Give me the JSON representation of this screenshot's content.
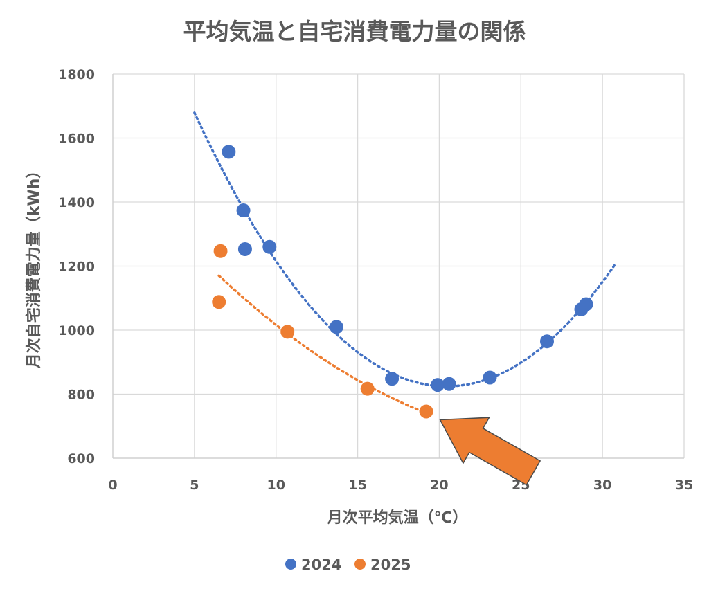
{
  "chart_data": {
    "type": "scatter",
    "title": "平均気温と自宅消費電力量の関係",
    "xlabel": "月次平均気温（℃）",
    "ylabel": "月次自宅消費電力量（kWh）",
    "xlim": [
      0,
      35
    ],
    "ylim": [
      600,
      1800
    ],
    "x_ticks": [
      0,
      5,
      10,
      15,
      20,
      25,
      30,
      35
    ],
    "y_ticks": [
      600,
      800,
      1000,
      1200,
      1400,
      1600,
      1800
    ],
    "grid": true,
    "legend_position": "bottom",
    "series": [
      {
        "name": "2024",
        "color": "#4472C4",
        "points": [
          {
            "x": 7.1,
            "y": 1557
          },
          {
            "x": 8.0,
            "y": 1374
          },
          {
            "x": 8.1,
            "y": 1253
          },
          {
            "x": 9.6,
            "y": 1260
          },
          {
            "x": 13.7,
            "y": 1010
          },
          {
            "x": 17.1,
            "y": 848
          },
          {
            "x": 19.9,
            "y": 829
          },
          {
            "x": 20.6,
            "y": 832
          },
          {
            "x": 23.1,
            "y": 852
          },
          {
            "x": 26.6,
            "y": 965
          },
          {
            "x": 28.7,
            "y": 1065
          },
          {
            "x": 29.0,
            "y": 1081
          }
        ],
        "trendline": {
          "type": "polynomial",
          "x_range": [
            5.0,
            30.8
          ]
        }
      },
      {
        "name": "2025",
        "color": "#ED7D31",
        "points": [
          {
            "x": 6.6,
            "y": 1247
          },
          {
            "x": 6.5,
            "y": 1088
          },
          {
            "x": 10.7,
            "y": 995
          },
          {
            "x": 15.6,
            "y": 817
          },
          {
            "x": 19.2,
            "y": 746
          }
        ],
        "trendline": {
          "type": "polynomial",
          "x_range": [
            6.5,
            19.2
          ]
        }
      }
    ],
    "annotation": {
      "type": "arrow",
      "color": "#ED7D31",
      "points_to": {
        "x": 19.2,
        "y": 746
      }
    }
  }
}
